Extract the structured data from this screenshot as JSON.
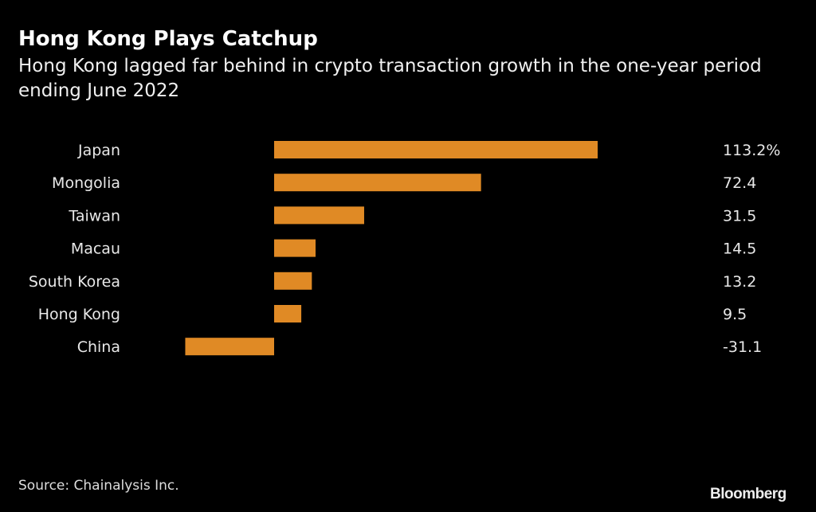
{
  "chart_data": {
    "type": "bar",
    "orientation": "horizontal",
    "title": "Hong Kong Plays Catchup",
    "subtitle": "Hong Kong lagged far behind in crypto transaction growth in the one-year period ending June 2022",
    "categories": [
      "Japan",
      "Mongolia",
      "Taiwan",
      "Macau",
      "South Korea",
      "Hong Kong",
      "China"
    ],
    "values": [
      113.2,
      72.4,
      31.5,
      14.5,
      13.2,
      9.5,
      -31.1
    ],
    "value_labels": [
      "113.2%",
      "72.4",
      "31.5",
      "14.5",
      "13.2",
      "9.5",
      "-31.1"
    ],
    "unit": "%",
    "xlabel": "",
    "ylabel": "",
    "xlim": [
      -31.1,
      113.2
    ],
    "grid": false,
    "bar_color": "#e08a25"
  },
  "source": "Source: Chainalysis Inc.",
  "logo": "Bloomberg"
}
